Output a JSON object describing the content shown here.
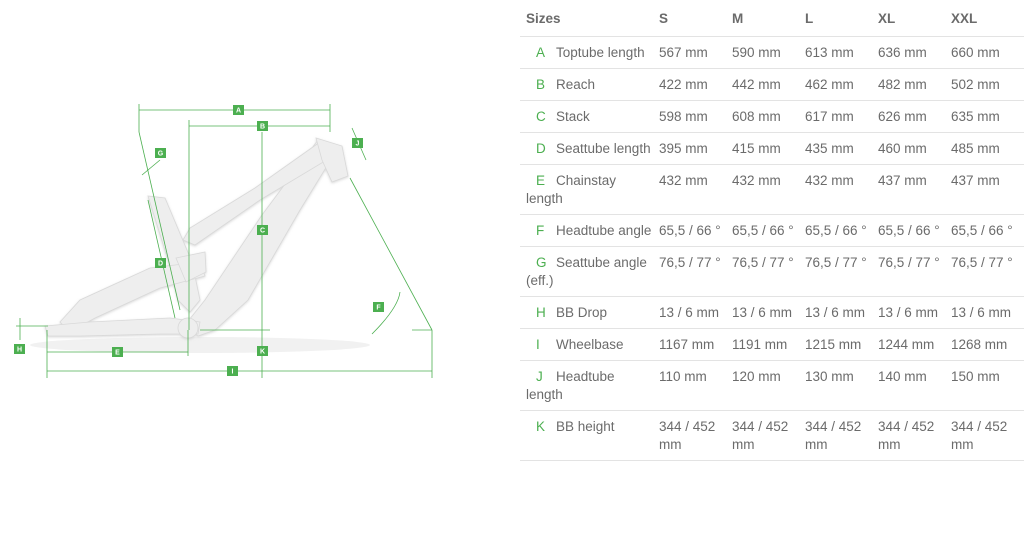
{
  "colors": {
    "accent": "#4caf50",
    "text": "#6b6b6b",
    "rule": "#e3e3e3",
    "frame": "#eeeeee"
  },
  "diagram": {
    "labels": [
      "A",
      "B",
      "C",
      "D",
      "E",
      "F",
      "G",
      "H",
      "I",
      "J",
      "K"
    ]
  },
  "table": {
    "header_label": "Sizes",
    "sizes": [
      "S",
      "M",
      "L",
      "XL",
      "XXL"
    ],
    "rows": [
      {
        "letter": "A",
        "name": "Toptube length",
        "values": [
          "567 mm",
          "590 mm",
          "613 mm",
          "636 mm",
          "660 mm"
        ]
      },
      {
        "letter": "B",
        "name": "Reach",
        "values": [
          "422 mm",
          "442 mm",
          "462 mm",
          "482 mm",
          "502 mm"
        ]
      },
      {
        "letter": "C",
        "name": "Stack",
        "values": [
          "598 mm",
          "608 mm",
          "617 mm",
          "626 mm",
          "635 mm"
        ]
      },
      {
        "letter": "D",
        "name": "Seattube length",
        "values": [
          "395 mm",
          "415 mm",
          "435 mm",
          "460 mm",
          "485 mm"
        ]
      },
      {
        "letter": "E",
        "name": "Chainstay length",
        "values": [
          "432 mm",
          "432 mm",
          "432 mm",
          "437 mm",
          "437 mm"
        ]
      },
      {
        "letter": "F",
        "name": "Headtube angle",
        "values": [
          "65,5 / 66 °",
          "65,5 / 66 °",
          "65,5 / 66 °",
          "65,5 / 66 °",
          "65,5 / 66 °"
        ]
      },
      {
        "letter": "G",
        "name": "Seattube angle (eff.)",
        "values": [
          "76,5 / 77 °",
          "76,5 / 77 °",
          "76,5 / 77 °",
          "76,5 / 77 °",
          "76,5 / 77 °"
        ]
      },
      {
        "letter": "H",
        "name": "BB Drop",
        "values": [
          "13 / 6 mm",
          "13 / 6 mm",
          "13 / 6 mm",
          "13 / 6 mm",
          "13 / 6 mm"
        ]
      },
      {
        "letter": "I",
        "name": "Wheelbase",
        "values": [
          "1167 mm",
          "1191 mm",
          "1215 mm",
          "1244 mm",
          "1268 mm"
        ]
      },
      {
        "letter": "J",
        "name": "Headtube length",
        "values": [
          "110 mm",
          "120 mm",
          "130 mm",
          "140 mm",
          "150 mm"
        ]
      },
      {
        "letter": "K",
        "name": "BB height",
        "values": [
          "344 / 452 mm",
          "344 / 452 mm",
          "344 / 452 mm",
          "344 / 452 mm",
          "344 / 452 mm"
        ]
      }
    ]
  }
}
